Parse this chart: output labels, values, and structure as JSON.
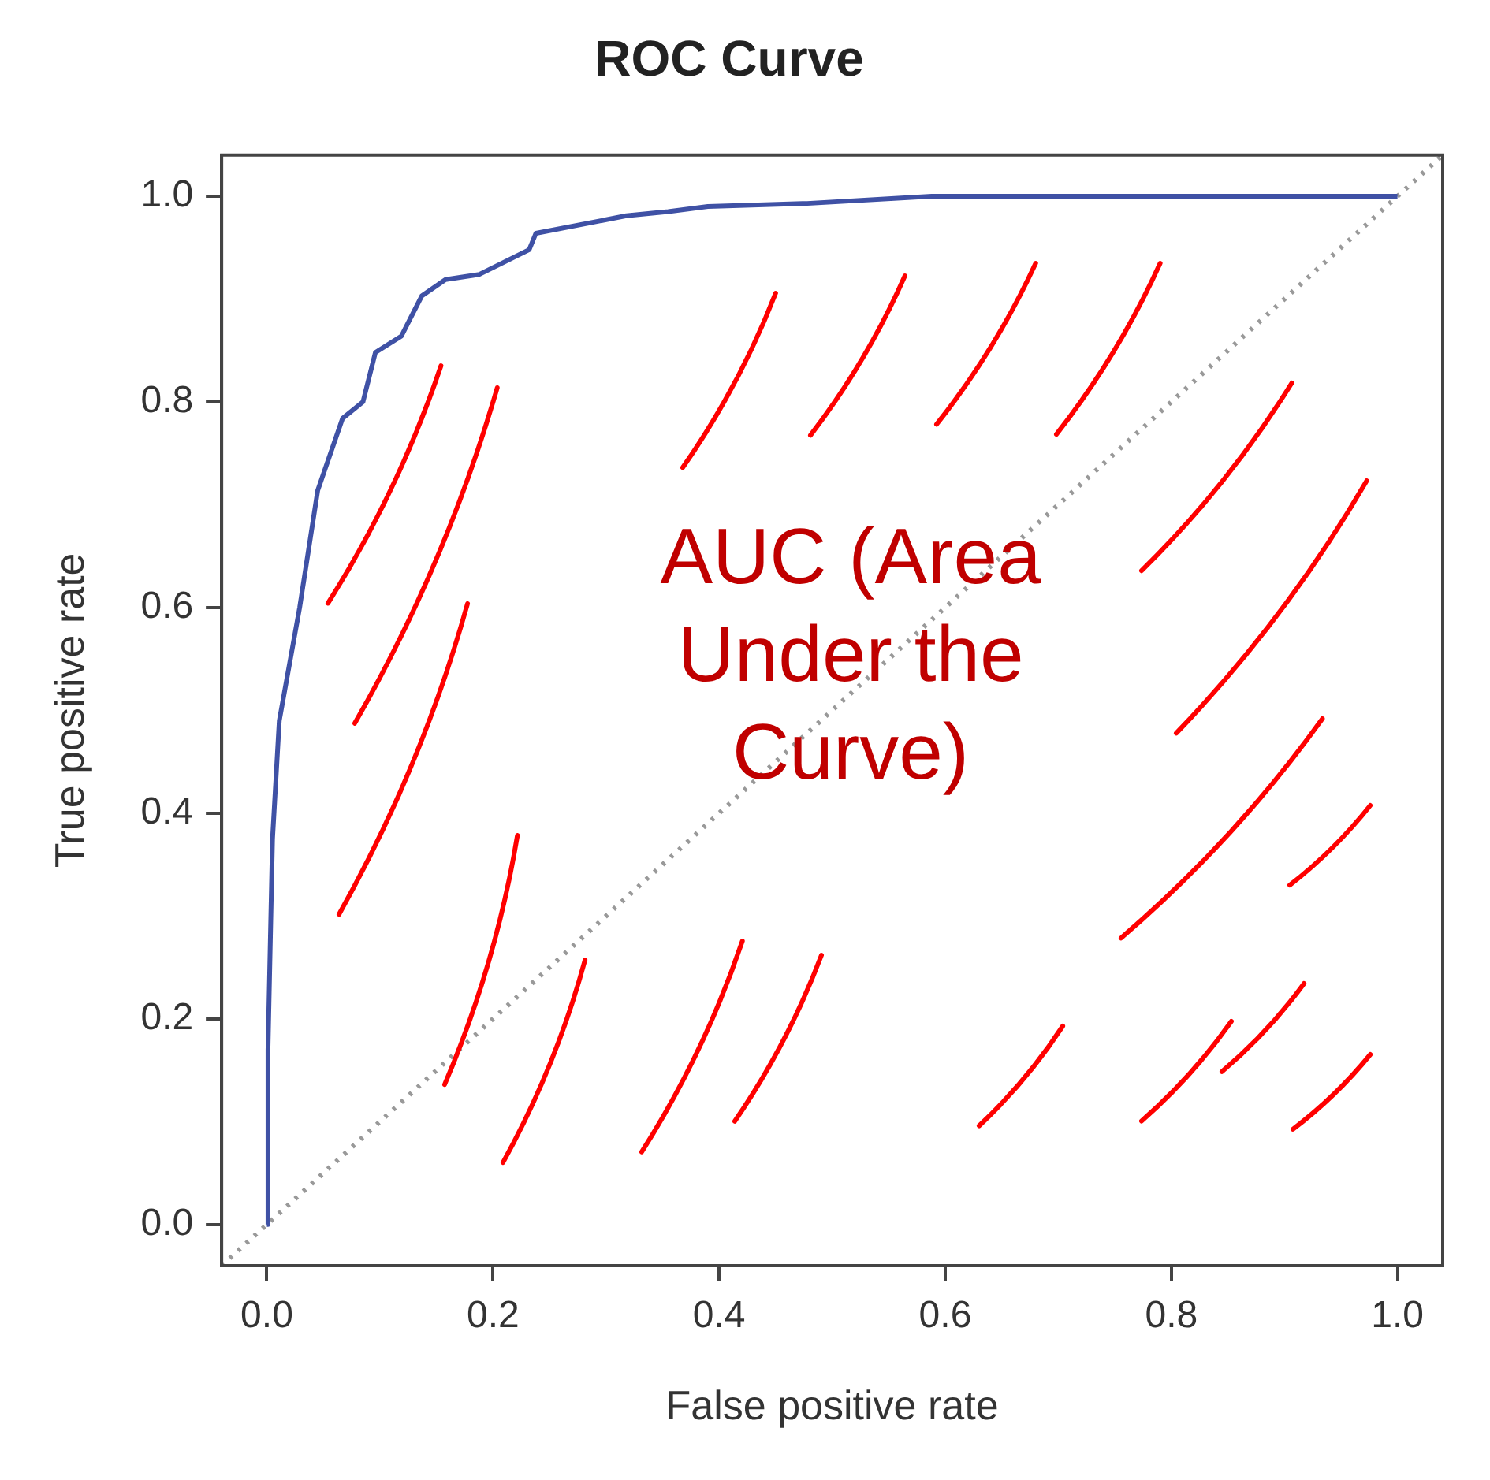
{
  "chart_data": {
    "type": "line",
    "title": "ROC Curve",
    "xlabel": "False positive rate",
    "ylabel": "True positive rate",
    "annotations": [
      "AUC (Area Under the Curve)"
    ],
    "xlim": [
      -0.04,
      1.04
    ],
    "ylim": [
      -0.04,
      1.04
    ],
    "xticks": [
      {
        "value": 0,
        "label": "0.0"
      },
      0.2,
      0.4,
      0.6,
      0.8,
      {
        "value": 1,
        "label": "1.0"
      }
    ],
    "yticks": [
      {
        "value": 0,
        "label": "0.0"
      },
      0.2,
      0.4,
      0.6,
      0.8,
      {
        "value": 1,
        "label": "1.0"
      }
    ],
    "grid": false,
    "legend": false,
    "marker": "none",
    "series": [
      {
        "color": "#3f51a5",
        "x": [
          0,
          0.001,
          0.005,
          0.011,
          0.029,
          0.045,
          0.067,
          0.085,
          0.096,
          0.119,
          0.137,
          0.158,
          0.188,
          0.232,
          0.238,
          0.318,
          0.355,
          0.39,
          0.478,
          0.588,
          1
        ],
        "values": [
          0,
          0.17,
          0.375,
          0.49,
          0.6,
          0.714,
          0.784,
          0.8,
          0.848,
          0.864,
          0.903,
          0.919,
          0.924,
          0.948,
          0.964,
          0.981,
          0.985,
          0.99,
          0.993,
          1,
          1
        ]
      },
      {
        "color": "#999999",
        "line_style": "dotted",
        "x": [
          -0.04,
          1.04
        ],
        "values": [
          -0.04,
          1.04
        ]
      }
    ]
  }
}
